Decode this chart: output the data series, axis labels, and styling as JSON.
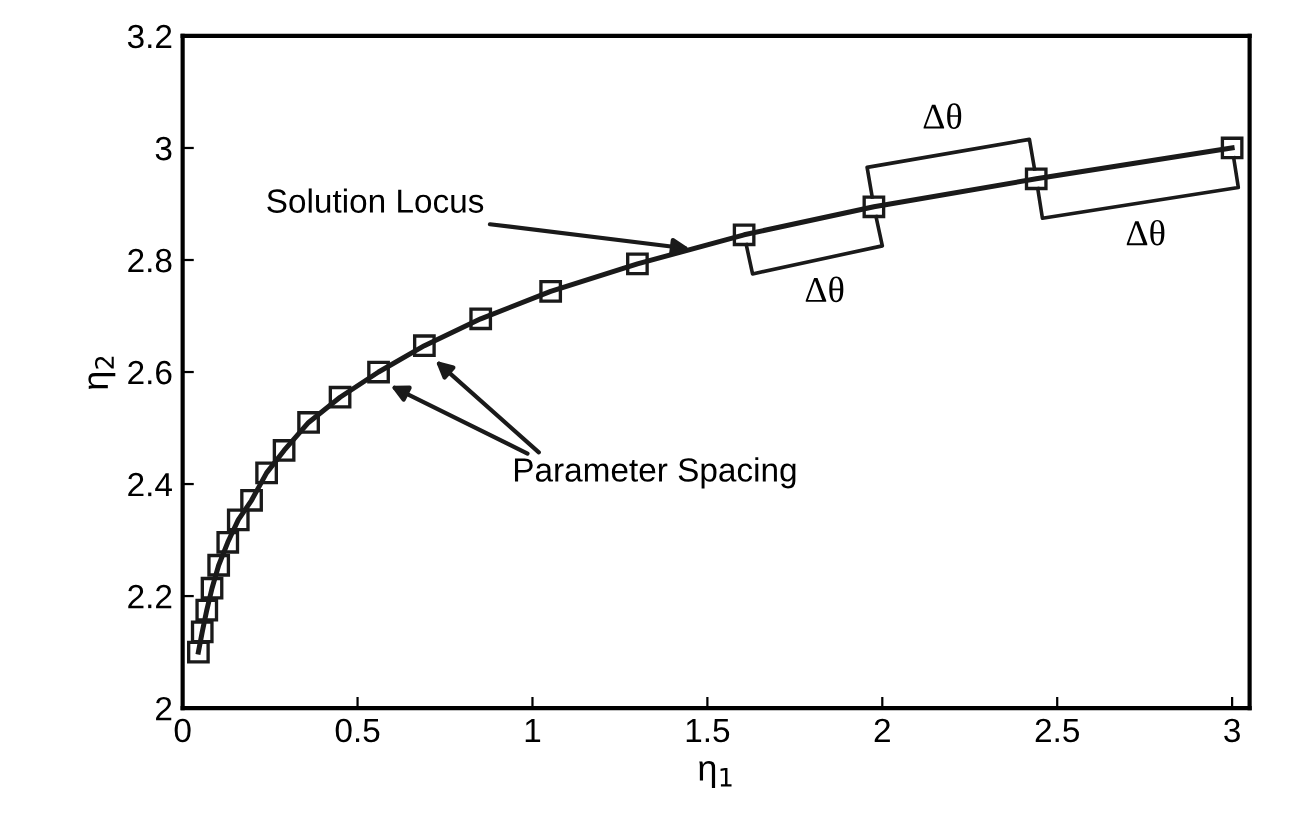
{
  "chart_data": {
    "type": "line",
    "xlabel": "η$_{1}$",
    "ylabel": "η$_{2}$",
    "series": [
      {
        "color": "#1a1a1a",
        "marker": "square",
        "x": [
          0.045,
          0.056,
          0.069,
          0.084,
          0.103,
          0.129,
          0.159,
          0.197,
          0.24,
          0.29,
          0.36,
          0.45,
          0.56,
          0.691,
          0.852,
          1.052,
          1.3,
          1.605,
          1.976,
          2.44,
          3.0
        ],
        "values": [
          2.1,
          2.136,
          2.175,
          2.214,
          2.255,
          2.296,
          2.336,
          2.371,
          2.42,
          2.46,
          2.51,
          2.555,
          2.6,
          2.647,
          2.695,
          2.744,
          2.793,
          2.845,
          2.895,
          2.945,
          3.0
        ]
      }
    ],
    "xlim": [
      0,
      3.05
    ],
    "ylim": [
      2,
      3.2
    ],
    "xticks": [
      0,
      0.5,
      1,
      1.5,
      2,
      2.5,
      3
    ],
    "yticks": [
      2,
      2.2,
      2.4,
      2.6,
      2.8,
      3,
      3.2
    ],
    "line_style": "solid",
    "grid": false,
    "legend": false,
    "annotations": [
      {
        "text": "Solution Locus",
        "x": 1.45,
        "y": 2.82
      },
      "Parameter Spacing",
      "Δθ",
      "Δθ",
      "Δθ"
    ]
  }
}
